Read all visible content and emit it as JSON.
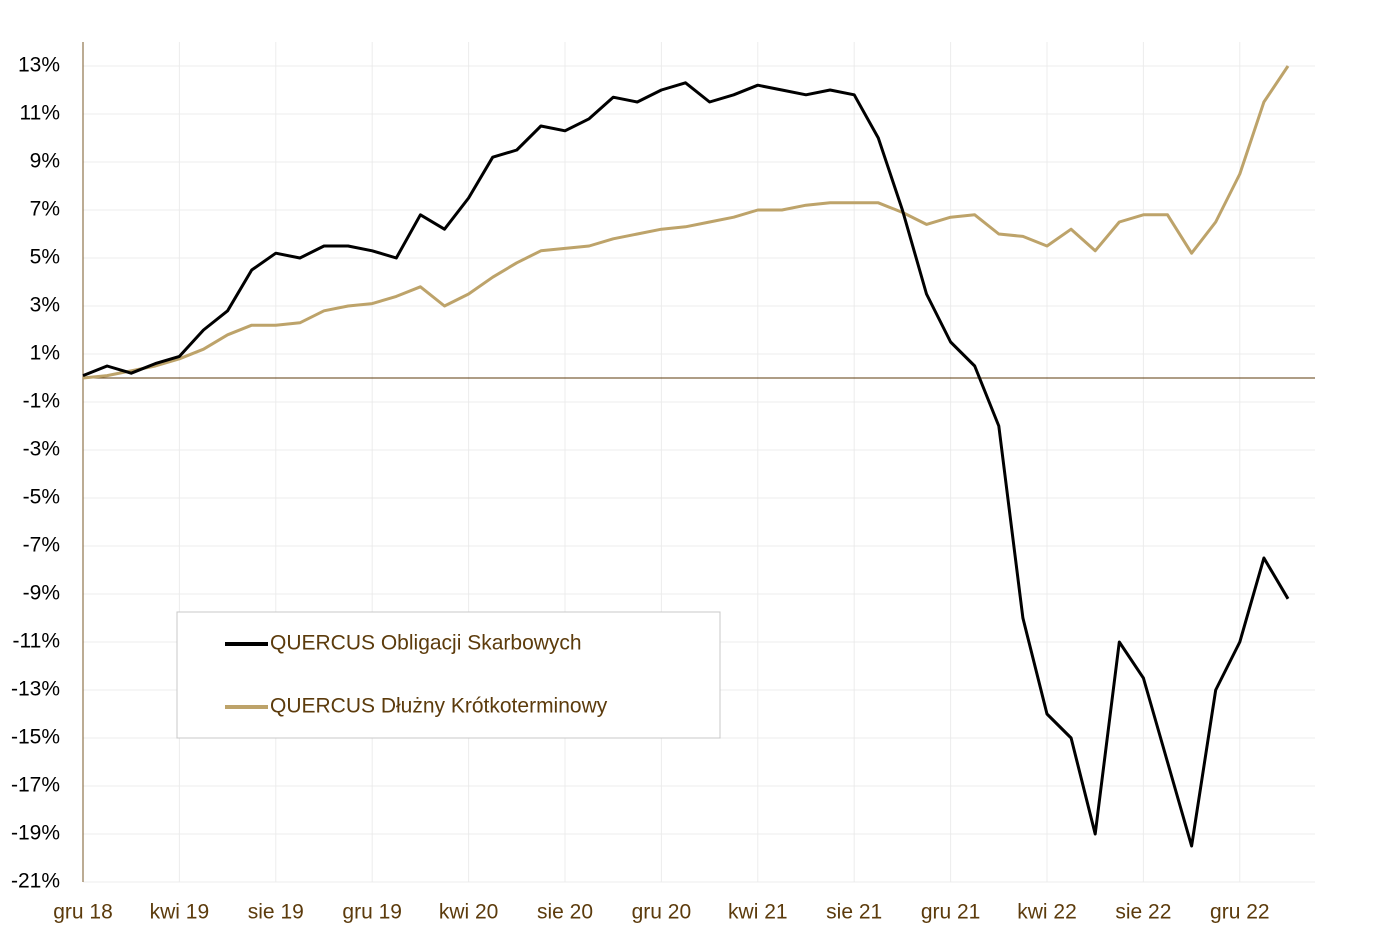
{
  "chart_data": {
    "type": "line",
    "categories": [
      "gru 18",
      null,
      null,
      null,
      "kwi 19",
      null,
      null,
      null,
      "sie 19",
      null,
      null,
      null,
      "gru 19",
      null,
      null,
      null,
      "kwi 20",
      null,
      null,
      null,
      "sie 20",
      null,
      null,
      null,
      "gru 20",
      null,
      null,
      null,
      "kwi 21",
      null,
      null,
      null,
      "sie 21",
      null,
      null,
      null,
      "gru 21",
      null,
      null,
      null,
      "kwi 22",
      null,
      null,
      null,
      "sie 22",
      null,
      null,
      null,
      "gru 22",
      null,
      null
    ],
    "series": [
      {
        "name": "QUERCUS Obligacji Skarbowych",
        "color": "#000000",
        "values": [
          0.1,
          0.5,
          0.2,
          0.6,
          0.9,
          2.0,
          2.8,
          4.5,
          5.2,
          5.0,
          5.5,
          5.5,
          5.3,
          5.0,
          6.8,
          6.2,
          7.5,
          9.2,
          9.5,
          10.5,
          10.3,
          10.8,
          11.7,
          11.5,
          12.0,
          12.3,
          11.5,
          11.8,
          12.2,
          12.0,
          11.8,
          12.0,
          11.8,
          10.0,
          7.0,
          3.5,
          1.5,
          0.5,
          -2.0,
          -10.0,
          -14.0,
          -15.0,
          -19.0,
          -11.0,
          -12.5,
          -16.0,
          -19.5,
          -13.0,
          -11.0,
          -7.5,
          -9.2
        ]
      },
      {
        "name": "QUERCUS Dłużny Krótkoterminowy",
        "color": "#bda36a",
        "values": [
          0.0,
          0.1,
          0.3,
          0.5,
          0.8,
          1.2,
          1.8,
          2.2,
          2.2,
          2.3,
          2.8,
          3.0,
          3.1,
          3.4,
          3.8,
          3.0,
          3.5,
          4.2,
          4.8,
          5.3,
          5.4,
          5.5,
          5.8,
          6.0,
          6.2,
          6.3,
          6.5,
          6.7,
          7.0,
          7.0,
          7.2,
          7.3,
          7.3,
          7.3,
          6.9,
          6.4,
          6.7,
          6.8,
          6.0,
          5.9,
          5.5,
          6.2,
          5.3,
          6.5,
          6.8,
          6.8,
          5.2,
          6.5,
          8.5,
          11.5,
          13.0
        ]
      }
    ],
    "ylim": [
      -21,
      14
    ],
    "yticks": [
      {
        "value": -21,
        "label": "-21%"
      },
      {
        "value": -19,
        "label": "-19%"
      },
      {
        "value": -17,
        "label": "-17%"
      },
      {
        "value": -15,
        "label": "-15%"
      },
      {
        "value": -13,
        "label": "-13%"
      },
      {
        "value": -11,
        "label": "-11%"
      },
      {
        "value": -9,
        "label": "-9%"
      },
      {
        "value": -7,
        "label": "-7%"
      },
      {
        "value": -5,
        "label": "-5%"
      },
      {
        "value": -3,
        "label": "-3%"
      },
      {
        "value": -1,
        "label": "-1%"
      },
      {
        "value": 1,
        "label": "1%"
      },
      {
        "value": 3,
        "label": "3%"
      },
      {
        "value": 5,
        "label": "5%"
      },
      {
        "value": 7,
        "label": "7%"
      },
      {
        "value": 9,
        "label": "9%"
      },
      {
        "value": 11,
        "label": "11%"
      },
      {
        "value": 13,
        "label": "13%"
      }
    ],
    "grid": true
  }
}
